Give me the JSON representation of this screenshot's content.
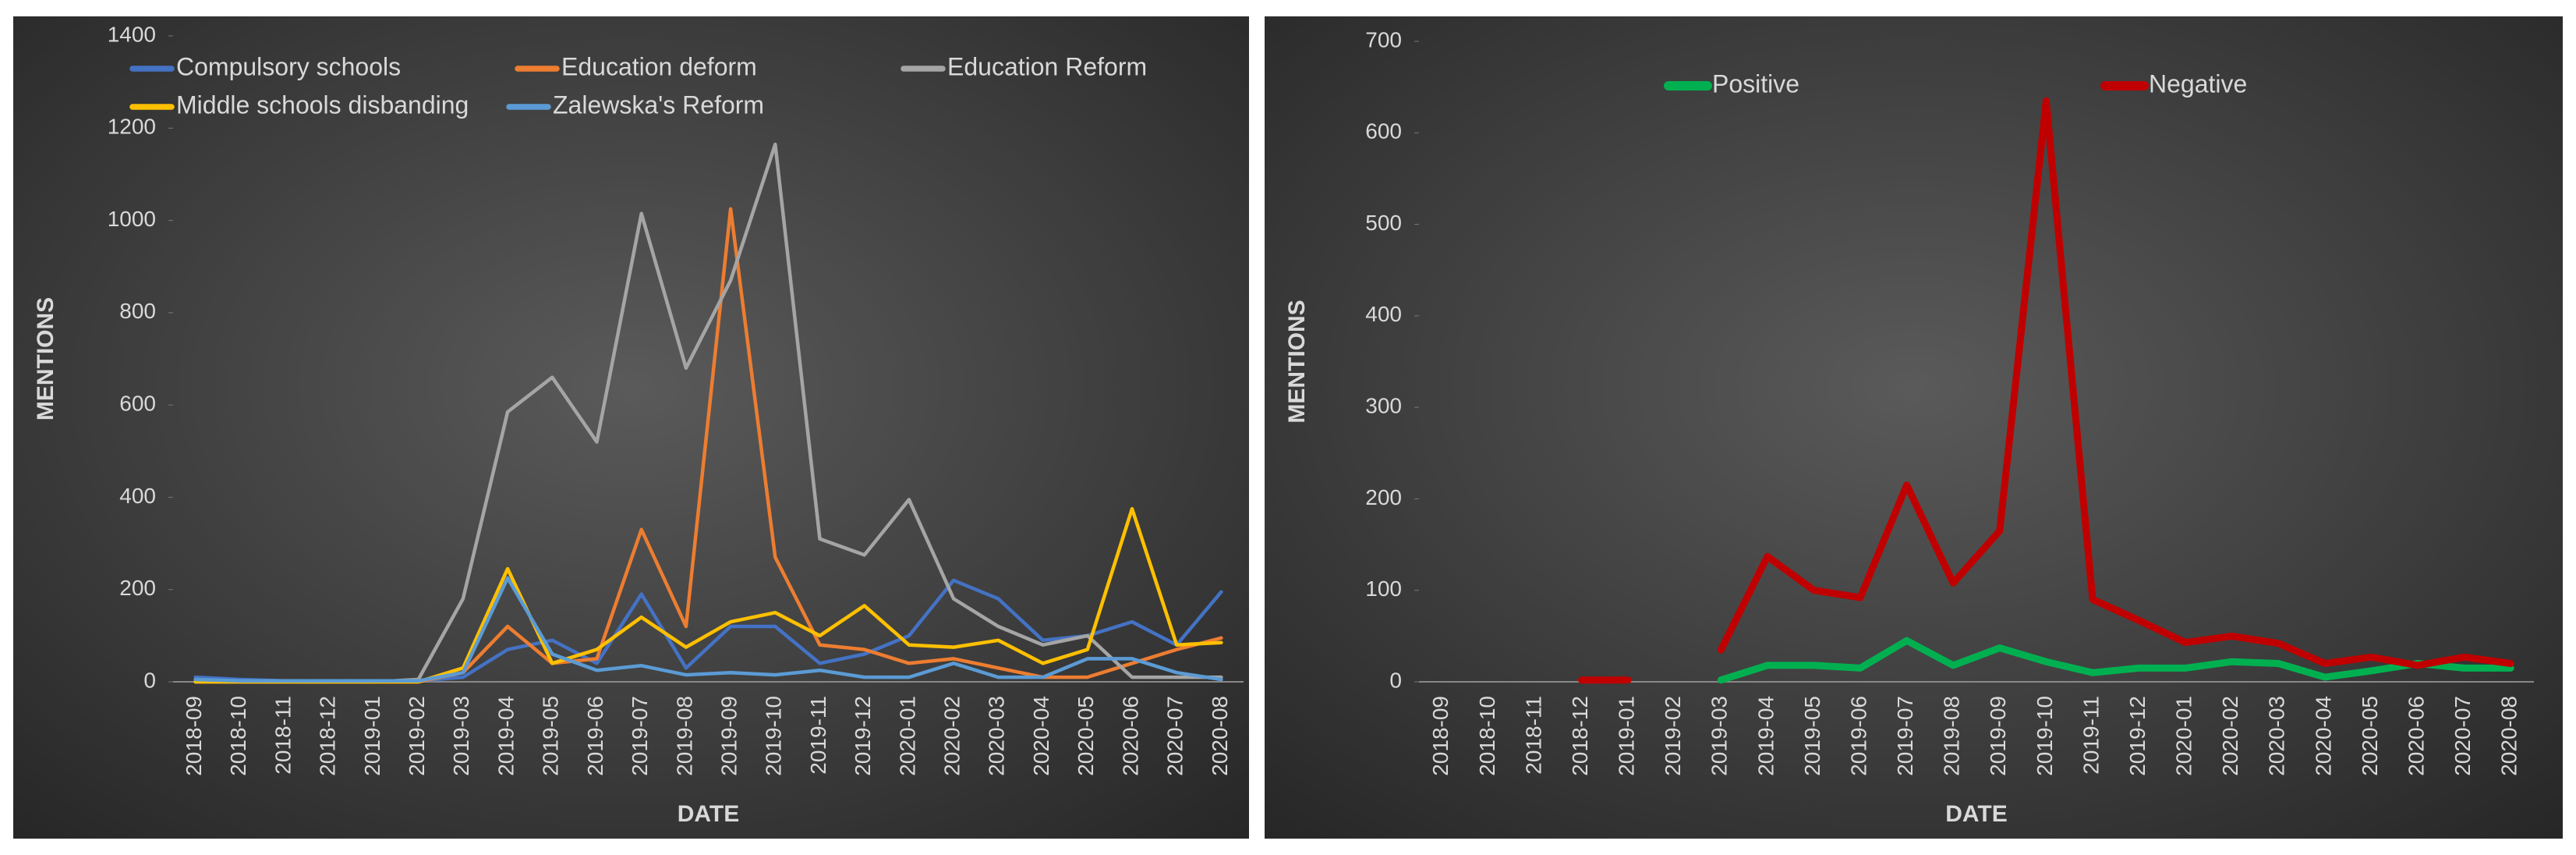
{
  "chart_data": [
    {
      "type": "line",
      "ylabel": "MENTIONS",
      "xlabel": "DATE",
      "categories": [
        "2018-09",
        "2018-10",
        "2018-11",
        "2018-12",
        "2019-01",
        "2019-02",
        "2019-03",
        "2019-04",
        "2019-05",
        "2019-06",
        "2019-07",
        "2019-08",
        "2019-09",
        "2019-10",
        "2019-11",
        "2019-12",
        "2020-01",
        "2020-02",
        "2020-03",
        "2020-04",
        "2020-05",
        "2020-06",
        "2020-07",
        "2020-08"
      ],
      "ylim": [
        0,
        1400
      ],
      "yticks": [
        0,
        200,
        400,
        600,
        800,
        1000,
        1200,
        1400
      ],
      "series": [
        {
          "name": "Compulsory schools",
          "color": "#4472c4",
          "values": [
            10,
            5,
            2,
            2,
            2,
            2,
            10,
            70,
            90,
            40,
            190,
            30,
            120,
            120,
            40,
            60,
            100,
            220,
            180,
            90,
            100,
            130,
            80,
            195
          ]
        },
        {
          "name": "Education deform",
          "color": "#ed7d31",
          "values": [
            0,
            0,
            0,
            0,
            0,
            0,
            20,
            120,
            40,
            50,
            330,
            120,
            1025,
            270,
            80,
            70,
            40,
            50,
            30,
            10,
            10,
            40,
            70,
            95
          ]
        },
        {
          "name": "Education Reform",
          "color": "#a5a5a5",
          "values": [
            0,
            0,
            0,
            0,
            0,
            5,
            180,
            585,
            660,
            520,
            1015,
            680,
            870,
            1165,
            310,
            275,
            395,
            180,
            120,
            80,
            100,
            10,
            10,
            10
          ]
        },
        {
          "name": "Middle schools disbanding",
          "color": "#ffc000",
          "values": [
            0,
            0,
            0,
            0,
            0,
            0,
            30,
            245,
            40,
            70,
            140,
            75,
            130,
            150,
            100,
            165,
            80,
            75,
            90,
            40,
            70,
            375,
            80,
            85
          ]
        },
        {
          "name": "Zalewska's Reform",
          "color": "#5b9bd5",
          "values": [
            5,
            2,
            2,
            2,
            2,
            2,
            20,
            225,
            60,
            25,
            35,
            15,
            20,
            15,
            25,
            10,
            10,
            40,
            10,
            10,
            50,
            50,
            20,
            5
          ]
        }
      ]
    },
    {
      "type": "line",
      "ylabel": "MENTIONS",
      "xlabel": "DATE",
      "categories": [
        "2018-09",
        "2018-10",
        "2018-11",
        "2018-12",
        "2019-01",
        "2019-02",
        "2019-03",
        "2019-04",
        "2019-05",
        "2019-06",
        "2019-07",
        "2019-08",
        "2019-09",
        "2019-10",
        "2019-11",
        "2019-12",
        "2020-01",
        "2020-02",
        "2020-03",
        "2020-04",
        "2020-05",
        "2020-06",
        "2020-07",
        "2020-08"
      ],
      "ylim": [
        0,
        700
      ],
      "yticks": [
        0,
        100,
        200,
        300,
        400,
        500,
        600,
        700
      ],
      "series": [
        {
          "name": "Positive",
          "color": "#00b050",
          "values": [
            null,
            null,
            null,
            null,
            null,
            null,
            2,
            18,
            18,
            15,
            45,
            18,
            37,
            22,
            10,
            15,
            15,
            22,
            20,
            5,
            12,
            20,
            15,
            15
          ]
        },
        {
          "name": "Negative",
          "color": "#c00000",
          "values": [
            null,
            null,
            null,
            2,
            2,
            null,
            35,
            137,
            100,
            92,
            215,
            108,
            165,
            635,
            90,
            67,
            43,
            50,
            42,
            20,
            27,
            18,
            27,
            20
          ]
        }
      ]
    }
  ]
}
